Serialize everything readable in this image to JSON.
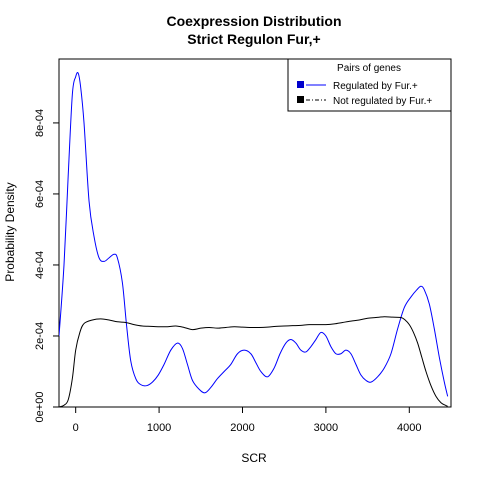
{
  "chart_data": {
    "type": "line",
    "title": "Coexpression Distribution",
    "subtitle": "Strict Regulon Fur,+",
    "xlabel": "SCR",
    "ylabel": "Probability Density",
    "xlim": [
      -200,
      4500
    ],
    "ylim": [
      0,
      0.00098
    ],
    "x_ticks": [
      0,
      1000,
      2000,
      3000,
      4000
    ],
    "x_tick_labels": [
      "0",
      "1000",
      "2000",
      "3000",
      "4000"
    ],
    "y_ticks": [
      0,
      0.0002,
      0.0004,
      0.0006,
      0.0008
    ],
    "y_tick_labels": [
      "0e+00",
      "2e-04",
      "4e-04",
      "6e-04",
      "8e-04"
    ],
    "grid": false,
    "legend": {
      "title": "Pairs of genes",
      "placement": "top-right",
      "entries": [
        {
          "label": "Regulated by  Fur.+",
          "color": "#0000ff",
          "line_style": "solid",
          "swatch_color": "#0000cc"
        },
        {
          "label": "Not regulated by  Fur.+",
          "color": "#000000",
          "line_style": "dashdot",
          "swatch_color": "#000000"
        }
      ]
    },
    "series": [
      {
        "name": "Regulated by  Fur.+",
        "color": "#0000ff",
        "points": [
          [
            -200,
            0.0002
          ],
          [
            -140,
            0.0004
          ],
          [
            -90,
            0.00065
          ],
          [
            -40,
            0.00088
          ],
          [
            0,
            0.00093
          ],
          [
            30,
            0.00094
          ],
          [
            60,
            0.0009
          ],
          [
            100,
            0.0008
          ],
          [
            160,
            0.00058
          ],
          [
            220,
            0.00048
          ],
          [
            280,
            0.00042
          ],
          [
            340,
            0.00041
          ],
          [
            400,
            0.00042
          ],
          [
            460,
            0.00043
          ],
          [
            500,
            0.00042
          ],
          [
            560,
            0.00035
          ],
          [
            610,
            0.00023
          ],
          [
            660,
            0.00013
          ],
          [
            720,
            8e-05
          ],
          [
            780,
            6.3e-05
          ],
          [
            850,
            6e-05
          ],
          [
            920,
            7e-05
          ],
          [
            990,
            9e-05
          ],
          [
            1060,
            0.00012
          ],
          [
            1140,
            0.00016
          ],
          [
            1220,
            0.00018
          ],
          [
            1280,
            0.000165
          ],
          [
            1340,
            0.00012
          ],
          [
            1400,
            7.5e-05
          ],
          [
            1480,
            5e-05
          ],
          [
            1550,
            4e-05
          ],
          [
            1620,
            5.5e-05
          ],
          [
            1700,
            8e-05
          ],
          [
            1780,
            0.0001
          ],
          [
            1860,
            0.00012
          ],
          [
            1940,
            0.00015
          ],
          [
            2020,
            0.00016
          ],
          [
            2100,
            0.00015
          ],
          [
            2160,
            0.000125
          ],
          [
            2220,
            0.0001
          ],
          [
            2300,
            8.5e-05
          ],
          [
            2380,
            0.00011
          ],
          [
            2450,
            0.00015
          ],
          [
            2520,
            0.00018
          ],
          [
            2580,
            0.00019
          ],
          [
            2640,
            0.00018
          ],
          [
            2700,
            0.00016
          ],
          [
            2760,
            0.000155
          ],
          [
            2820,
            0.00017
          ],
          [
            2880,
            0.00019
          ],
          [
            2940,
            0.00021
          ],
          [
            3000,
            0.0002
          ],
          [
            3060,
            0.00017
          ],
          [
            3120,
            0.00015
          ],
          [
            3180,
            0.00015
          ],
          [
            3240,
            0.00016
          ],
          [
            3300,
            0.00015
          ],
          [
            3360,
            0.00012
          ],
          [
            3420,
            9e-05
          ],
          [
            3480,
            7.5e-05
          ],
          [
            3540,
            7e-05
          ],
          [
            3620,
            8.5e-05
          ],
          [
            3700,
            0.00011
          ],
          [
            3780,
            0.00015
          ],
          [
            3860,
            0.00022
          ],
          [
            3940,
            0.00028
          ],
          [
            4020,
            0.00031
          ],
          [
            4090,
            0.00033
          ],
          [
            4140,
            0.00034
          ],
          [
            4180,
            0.00033
          ],
          [
            4240,
            0.00029
          ],
          [
            4300,
            0.00022
          ],
          [
            4360,
            0.00014
          ],
          [
            4420,
            7e-05
          ],
          [
            4460,
            3e-05
          ]
        ]
      },
      {
        "name": "Not regulated by  Fur.+",
        "color": "#000000",
        "points": [
          [
            -200,
            0.0
          ],
          [
            -140,
            5e-06
          ],
          [
            -90,
            2e-05
          ],
          [
            -40,
            8e-05
          ],
          [
            0,
            0.00016
          ],
          [
            50,
            0.00021
          ],
          [
            100,
            0.000235
          ],
          [
            200,
            0.000245
          ],
          [
            300,
            0.000248
          ],
          [
            400,
            0.000245
          ],
          [
            500,
            0.00024
          ],
          [
            600,
            0.000238
          ],
          [
            700,
            0.000232
          ],
          [
            800,
            0.000228
          ],
          [
            900,
            0.000227
          ],
          [
            1000,
            0.000226
          ],
          [
            1100,
            0.000226
          ],
          [
            1200,
            0.000228
          ],
          [
            1300,
            0.000224
          ],
          [
            1400,
            0.000218
          ],
          [
            1500,
            0.000222
          ],
          [
            1600,
            0.000224
          ],
          [
            1700,
            0.000222
          ],
          [
            1800,
            0.000224
          ],
          [
            1900,
            0.000226
          ],
          [
            2000,
            0.000225
          ],
          [
            2100,
            0.000224
          ],
          [
            2200,
            0.000224
          ],
          [
            2300,
            0.000225
          ],
          [
            2400,
            0.000227
          ],
          [
            2500,
            0.000228
          ],
          [
            2600,
            0.000229
          ],
          [
            2700,
            0.00023
          ],
          [
            2800,
            0.000232
          ],
          [
            2900,
            0.000232
          ],
          [
            3000,
            0.000232
          ],
          [
            3100,
            0.000234
          ],
          [
            3200,
            0.000238
          ],
          [
            3300,
            0.000242
          ],
          [
            3400,
            0.000245
          ],
          [
            3500,
            0.00025
          ],
          [
            3600,
            0.000252
          ],
          [
            3700,
            0.000254
          ],
          [
            3800,
            0.000253
          ],
          [
            3900,
            0.000252
          ],
          [
            3950,
            0.000245
          ],
          [
            4000,
            0.000232
          ],
          [
            4050,
            0.00021
          ],
          [
            4100,
            0.00018
          ],
          [
            4150,
            0.00014
          ],
          [
            4200,
            0.0001
          ],
          [
            4260,
            6e-05
          ],
          [
            4320,
            3e-05
          ],
          [
            4380,
            1.2e-05
          ],
          [
            4440,
            4e-06
          ],
          [
            4460,
            2e-06
          ]
        ]
      }
    ]
  }
}
